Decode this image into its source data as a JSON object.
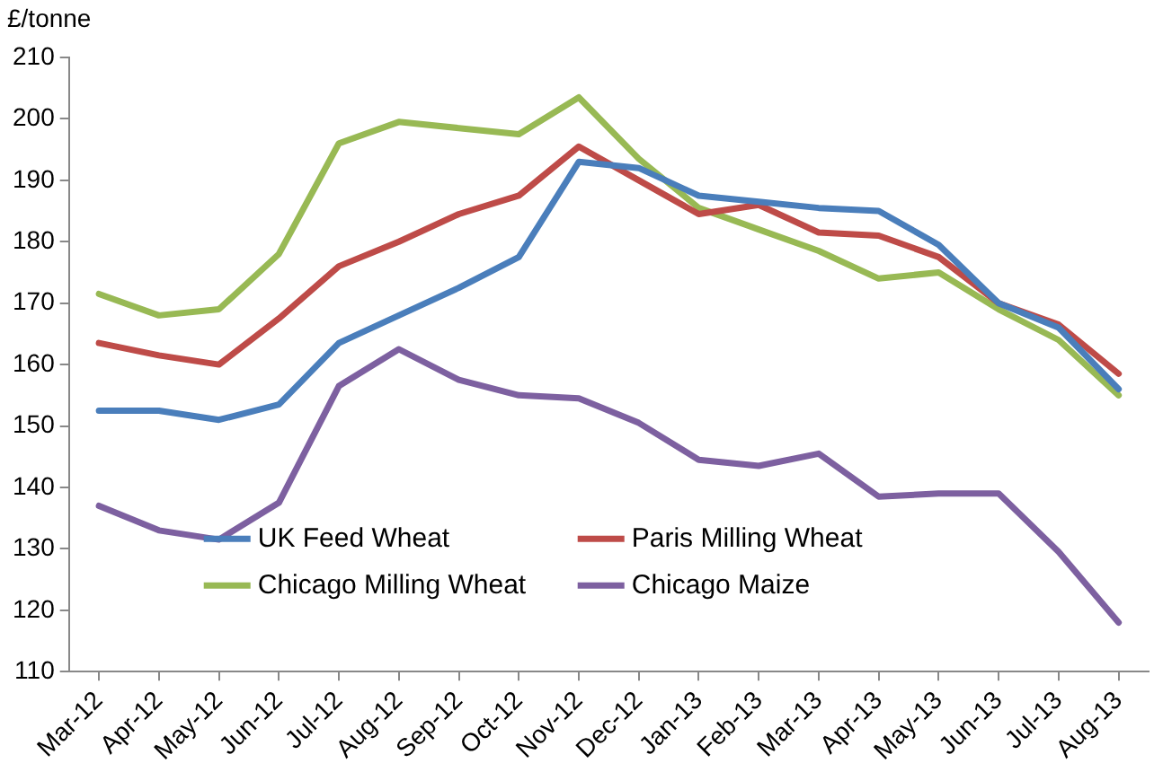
{
  "chart_data": {
    "type": "line",
    "ylabel": "£/tonne",
    "categories": [
      "Mar-12",
      "Apr-12",
      "May-12",
      "Jun-12",
      "Jul-12",
      "Aug-12",
      "Sep-12",
      "Oct-12",
      "Nov-12",
      "Dec-12",
      "Jan-13",
      "Feb-13",
      "Mar-13",
      "Apr-13",
      "May-13",
      "Jun-13",
      "Jul-13",
      "Aug-13"
    ],
    "series": [
      {
        "name": "UK Feed Wheat",
        "color": "#4a7ebb",
        "values": [
          152.5,
          152.5,
          151,
          153.5,
          163.5,
          168,
          172.5,
          177.5,
          193,
          192,
          187.5,
          186.5,
          185.5,
          185,
          179.5,
          170,
          166,
          156
        ]
      },
      {
        "name": "Paris Milling Wheat",
        "color": "#be4b48",
        "values": [
          163.5,
          161.5,
          160,
          167.5,
          176,
          180,
          184.5,
          187.5,
          195.5,
          190,
          184.5,
          186,
          181.5,
          181,
          177.5,
          170,
          166.5,
          158.5
        ]
      },
      {
        "name": "Chicago Milling Wheat",
        "color": "#98b954",
        "values": [
          171.5,
          168,
          169,
          178,
          196,
          199.5,
          198.5,
          197.5,
          203.5,
          193.5,
          185.5,
          182,
          178.5,
          174,
          175,
          169,
          164,
          155
        ]
      },
      {
        "name": "Chicago Maize",
        "color": "#7d60a0",
        "values": [
          137,
          133,
          131.5,
          137.5,
          156.5,
          162.5,
          157.5,
          155,
          154.5,
          150.5,
          144.5,
          143.5,
          145.5,
          138.5,
          139,
          139,
          129.5,
          118
        ]
      }
    ],
    "ylim": [
      110,
      210
    ],
    "yticks": [
      110,
      120,
      130,
      140,
      150,
      160,
      170,
      180,
      190,
      200,
      210
    ],
    "grid": false,
    "legend": "bottom left",
    "marker": "none",
    "line_style": "solid"
  }
}
